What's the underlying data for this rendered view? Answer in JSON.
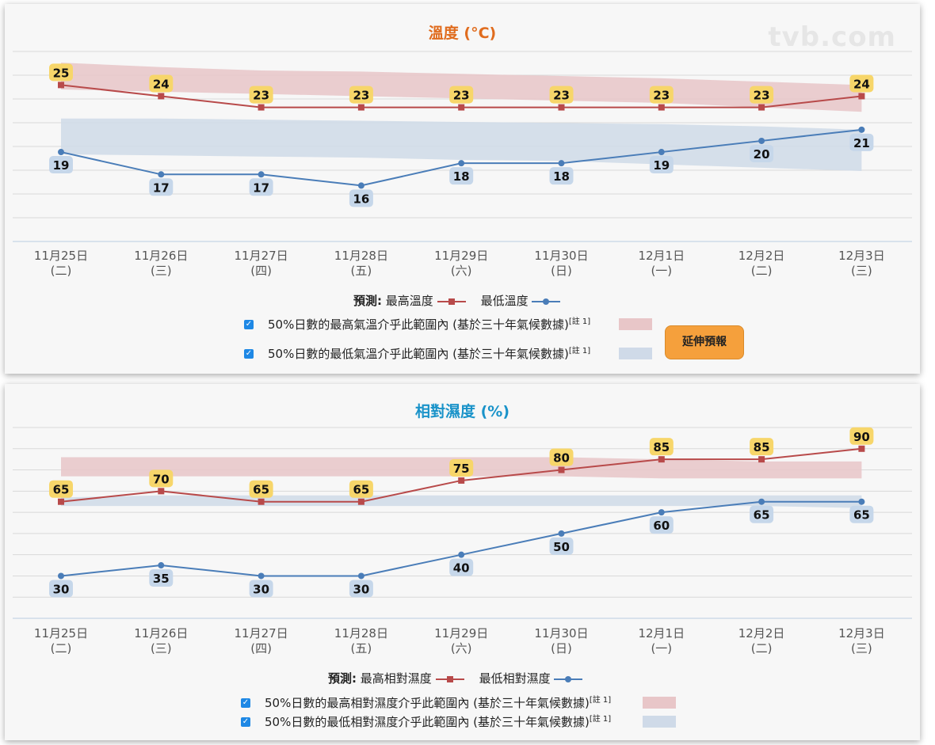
{
  "logo_text": "tvb.com",
  "extend_button": "延伸預報",
  "chart_data": [
    {
      "type": "line",
      "title": "溫度 (°C)",
      "categories": [
        "11月25日",
        "11月26日",
        "11月27日",
        "11月28日",
        "11月29日",
        "11月30日",
        "12月1日",
        "12月2日",
        "12月3日"
      ],
      "weekdays": [
        "(二)",
        "(三)",
        "(四)",
        "(五)",
        "(六)",
        "(日)",
        "(一)",
        "(二)",
        "(三)"
      ],
      "ylim": [
        11,
        28
      ],
      "grid": true,
      "series": [
        {
          "name": "最高溫度",
          "values": [
            25,
            24,
            23,
            23,
            23,
            23,
            23,
            23,
            24
          ],
          "color": "#b84a4a",
          "marker": "square",
          "label_bg": "#f7d66a"
        },
        {
          "name": "最低溫度",
          "values": [
            19,
            17,
            17,
            16,
            18,
            18,
            19,
            20,
            21
          ],
          "color": "#4a7db8",
          "marker": "circle",
          "label_bg": "#c6d7ea"
        }
      ],
      "bands": [
        {
          "color": "#e8c6c8",
          "lower": [
            24.6,
            24.4,
            24.2,
            24.0,
            23.8,
            23.6,
            23.4,
            23.0,
            22.6
          ],
          "upper": [
            27.0,
            26.6,
            26.3,
            26.2,
            26.0,
            25.8,
            25.6,
            25.3,
            25.0
          ]
        },
        {
          "color": "#cfdae8",
          "lower": [
            18.8,
            18.7,
            18.6,
            18.5,
            18.3,
            18.2,
            17.9,
            17.6,
            17.3
          ],
          "upper": [
            22.0,
            22.0,
            21.9,
            21.8,
            21.7,
            21.6,
            21.5,
            21.3,
            21.0
          ]
        }
      ],
      "legend": {
        "forecast_label": "預測:",
        "max_label": "最高溫度",
        "min_label": "最低溫度",
        "band_max_text": "50%日數的最高氣溫介乎此範圍內 (基於三十年氣候數據)",
        "band_min_text": "50%日數的最低氣溫介乎此範圍內 (基於三十年氣候數據)",
        "note": "[註 1]"
      }
    },
    {
      "type": "line",
      "title": "相對濕度 (%)",
      "categories": [
        "11月25日",
        "11月26日",
        "11月27日",
        "11月28日",
        "11月29日",
        "11月30日",
        "12月1日",
        "12月2日",
        "12月3日"
      ],
      "weekdays": [
        "(二)",
        "(三)",
        "(四)",
        "(五)",
        "(六)",
        "(日)",
        "(一)",
        "(二)",
        "(三)"
      ],
      "ylim": [
        10,
        100
      ],
      "grid": true,
      "series": [
        {
          "name": "最高相對濕度",
          "values": [
            65,
            70,
            65,
            65,
            75,
            80,
            85,
            85,
            90
          ],
          "color": "#b84a4a",
          "marker": "square",
          "label_bg": "#f7d66a"
        },
        {
          "name": "最低相對濕度",
          "values": [
            30,
            35,
            30,
            30,
            40,
            50,
            60,
            65,
            65
          ],
          "color": "#4a7db8",
          "marker": "circle",
          "label_bg": "#c6d7ea"
        }
      ],
      "bands": [
        {
          "color": "#e8c6c8",
          "lower": [
            77,
            77,
            77,
            77,
            77,
            77,
            76,
            76,
            76
          ],
          "upper": [
            86,
            86,
            86,
            86,
            86,
            86,
            85,
            84,
            84
          ]
        },
        {
          "color": "#cfdae8",
          "lower": [
            63,
            63,
            63,
            63,
            63,
            63,
            63,
            63,
            62
          ],
          "upper": [
            67,
            68,
            68,
            68,
            68,
            68,
            68,
            68,
            68
          ]
        }
      ],
      "legend": {
        "forecast_label": "預測:",
        "max_label": "最高相對濕度",
        "min_label": "最低相對濕度",
        "band_max_text": "50%日數的最高相對濕度介乎此範圍內 (基於三十年氣候數據)",
        "band_min_text": "50%日數的最低相對濕度介乎此範圍內 (基於三十年氣候數據)",
        "note": "[註 1]"
      }
    }
  ]
}
